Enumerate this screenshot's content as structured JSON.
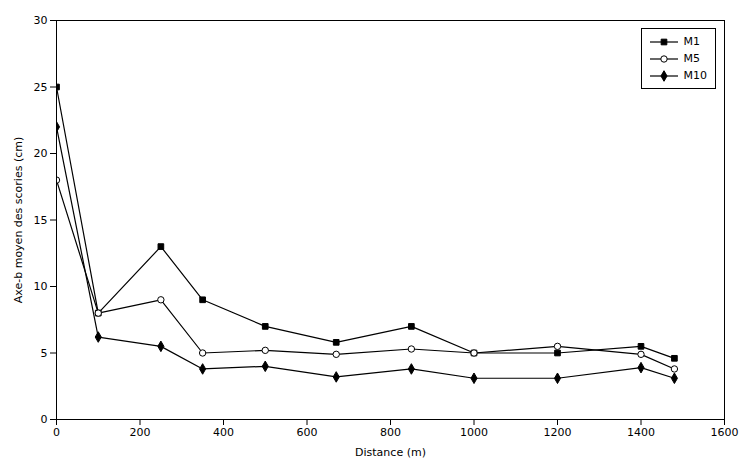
{
  "chart_data": {
    "type": "line",
    "xlabel": "Distance (m)",
    "ylabel": "Axe-b moyen des scories (cm)",
    "x": [
      0,
      100,
      250,
      350,
      500,
      670,
      850,
      1000,
      1200,
      1400,
      1480
    ],
    "series": [
      {
        "name": "M1",
        "color": "#000000",
        "marker": "square",
        "line_style": "solid",
        "values": [
          25,
          8,
          13,
          9,
          7,
          5.8,
          7,
          5,
          5,
          5.5,
          4.6
        ]
      },
      {
        "name": "M5",
        "color": "#000000",
        "marker": "circle-open",
        "line_style": "solid",
        "values": [
          18,
          8,
          9,
          5,
          5.2,
          4.9,
          5.3,
          5,
          5.5,
          4.9,
          3.8
        ]
      },
      {
        "name": "M10",
        "color": "#000000",
        "marker": "diamond",
        "line_style": "solid",
        "values": [
          22,
          6.2,
          5.5,
          3.8,
          4,
          3.2,
          3.8,
          3.1,
          3.1,
          3.9,
          3.1
        ]
      }
    ],
    "xlim": [
      0,
      1600
    ],
    "ylim": [
      0,
      30
    ],
    "xticks": [
      0,
      200,
      400,
      600,
      800,
      1000,
      1200,
      1400,
      1600
    ],
    "yticks": [
      0,
      5,
      10,
      15,
      20,
      25,
      30
    ],
    "legend": "upper right",
    "grid": false
  }
}
